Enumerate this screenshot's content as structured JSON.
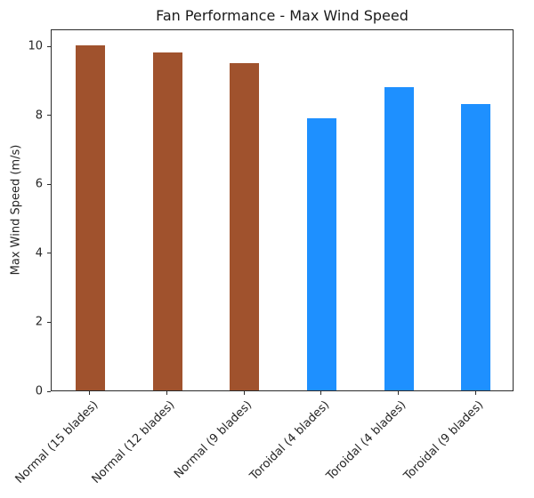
{
  "title": "Fan Performance - Max Wind Speed",
  "y_axis_label": "Max Wind Speed (m/s)",
  "chart_data": {
    "type": "bar",
    "title": "Fan Performance - Max Wind Speed",
    "categories": [
      "Normal (15 blades)",
      "Normal (12 blades)",
      "Normal (9 blades)",
      "Toroidal (4 blades)",
      "Toroidal (4 blades)",
      "Toroidal (9 blades)"
    ],
    "values": [
      10.0,
      9.8,
      9.5,
      7.9,
      8.8,
      8.3
    ],
    "bar_colors": [
      "#A0522D",
      "#A0522D",
      "#A0522D",
      "#1E90FF",
      "#1E90FF",
      "#1E90FF"
    ],
    "xlabel": "",
    "ylabel": "Max Wind Speed (m/s)",
    "ylim": [
      0,
      10.5
    ],
    "yticks": [
      0,
      2,
      4,
      6,
      8,
      10
    ],
    "grid": false,
    "legend": "none",
    "xtick_rotation": 45
  },
  "colors": {
    "normal_bar": "#A0522D",
    "toroidal_bar": "#1E90FF",
    "axis": "#2b2b2b",
    "text": "#262626",
    "background": "#ffffff"
  }
}
